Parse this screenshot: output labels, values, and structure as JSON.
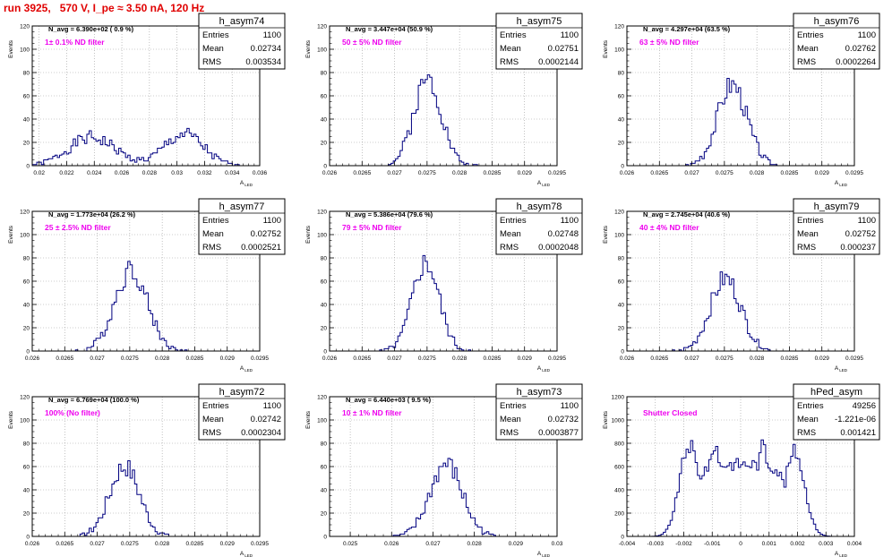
{
  "page_title": "run 3925,   570 V, I_pe ≈ 3.50 nA, 120 Hz",
  "colors": {
    "title": "#e00000",
    "hist": "#000080",
    "note": "#ee00ee",
    "grid": "#999999"
  },
  "common": {
    "y_label": "Events",
    "x_label": "A",
    "x_label_sub": "LED",
    "stat_labels": [
      "Entries",
      "Mean",
      "RMS"
    ]
  },
  "chart_data": [
    {
      "type": "bar",
      "name": "h_asym74",
      "navg_text": "N_avg = 6.390e+02 ( 0.9 %)",
      "note": "1± 0.1% ND filter",
      "stats": {
        "entries": "1100",
        "mean": "0.02734",
        "rms": "0.003534"
      },
      "xlim": [
        0.0195,
        0.036
      ],
      "xticks": [
        0.02,
        0.022,
        0.024,
        0.026,
        0.028,
        0.03,
        0.032,
        0.034,
        0.036
      ],
      "xtick_labels": [
        "0.02",
        "0.022",
        "0.024",
        "0.026",
        "0.028",
        "0.03",
        "0.032",
        "0.034",
        "0.036"
      ],
      "ylim": [
        0,
        120
      ],
      "yticks": [
        0,
        20,
        40,
        60,
        80,
        100,
        120
      ],
      "shape": "bimodal",
      "peaks": [
        {
          "mu": 0.0238,
          "sigma": 0.0017,
          "amp": 24
        },
        {
          "mu": 0.0305,
          "sigma": 0.0014,
          "amp": 27
        }
      ],
      "nbins": 100,
      "seed": 1
    },
    {
      "type": "bar",
      "name": "h_asym75",
      "navg_text": "N_avg = 3.447e+04 (50.9 %)",
      "note": "50 ± 5% ND filter",
      "stats": {
        "entries": "1100",
        "mean": "0.02751",
        "rms": "0.0002144"
      },
      "xlim": [
        0.026,
        0.0295
      ],
      "xticks": [
        0.026,
        0.0265,
        0.027,
        0.0275,
        0.028,
        0.0285,
        0.029,
        0.0295
      ],
      "xtick_labels": [
        "0.026",
        "0.0265",
        "0.027",
        "0.0275",
        "0.028",
        "0.0285",
        "0.029",
        "0.0295"
      ],
      "ylim": [
        0,
        120
      ],
      "yticks": [
        0,
        20,
        40,
        60,
        80,
        100,
        120
      ],
      "shape": "gauss",
      "peaks": [
        {
          "mu": 0.02751,
          "sigma": 0.000214,
          "amp": 75
        }
      ],
      "nbins": 100,
      "seed": 2
    },
    {
      "type": "bar",
      "name": "h_asym76",
      "navg_text": "N_avg = 4.297e+04 (63.5 %)",
      "note": "63 ± 5% ND filter",
      "stats": {
        "entries": "1100",
        "mean": "0.02762",
        "rms": "0.0002264"
      },
      "xlim": [
        0.026,
        0.0295
      ],
      "xticks": [
        0.026,
        0.0265,
        0.027,
        0.0275,
        0.028,
        0.0285,
        0.029,
        0.0295
      ],
      "xtick_labels": [
        "0.026",
        "0.0265",
        "0.027",
        "0.0275",
        "0.028",
        "0.0285",
        "0.029",
        "0.0295"
      ],
      "ylim": [
        0,
        120
      ],
      "yticks": [
        0,
        20,
        40,
        60,
        80,
        100,
        120
      ],
      "shape": "gauss",
      "peaks": [
        {
          "mu": 0.02762,
          "sigma": 0.000226,
          "amp": 70
        }
      ],
      "nbins": 100,
      "seed": 3
    },
    {
      "type": "bar",
      "name": "h_asym77",
      "navg_text": "N_avg = 1.773e+04 (26.2 %)",
      "note": "25 ± 2.5% ND filter",
      "stats": {
        "entries": "1100",
        "mean": "0.02752",
        "rms": "0.0002521"
      },
      "xlim": [
        0.026,
        0.0295
      ],
      "xticks": [
        0.026,
        0.0265,
        0.027,
        0.0275,
        0.028,
        0.0285,
        0.029,
        0.0295
      ],
      "xtick_labels": [
        "0.026",
        "0.0265",
        "0.027",
        "0.0275",
        "0.028",
        "0.0285",
        "0.029",
        "0.0295"
      ],
      "ylim": [
        0,
        120
      ],
      "yticks": [
        0,
        20,
        40,
        60,
        80,
        100,
        120
      ],
      "shape": "gauss",
      "peaks": [
        {
          "mu": 0.02752,
          "sigma": 0.000252,
          "amp": 70
        }
      ],
      "nbins": 100,
      "seed": 4
    },
    {
      "type": "bar",
      "name": "h_asym78",
      "navg_text": "N_avg = 5.386e+04 (79.6 %)",
      "note": "79 ± 5% ND filter",
      "stats": {
        "entries": "1100",
        "mean": "0.02748",
        "rms": "0.0002048"
      },
      "xlim": [
        0.026,
        0.0295
      ],
      "xticks": [
        0.026,
        0.0265,
        0.027,
        0.0275,
        0.028,
        0.0285,
        0.029,
        0.0295
      ],
      "xtick_labels": [
        "0.026",
        "0.0265",
        "0.027",
        "0.0275",
        "0.028",
        "0.0285",
        "0.029",
        "0.0295"
      ],
      "ylim": [
        0,
        120
      ],
      "yticks": [
        0,
        20,
        40,
        60,
        80,
        100,
        120
      ],
      "shape": "gauss",
      "peaks": [
        {
          "mu": 0.02748,
          "sigma": 0.000205,
          "amp": 76
        }
      ],
      "nbins": 100,
      "seed": 5
    },
    {
      "type": "bar",
      "name": "h_asym79",
      "navg_text": "N_avg = 2.745e+04 (40.6 %)",
      "note": "40 ± 4% ND filter",
      "stats": {
        "entries": "1100",
        "mean": "0.02752",
        "rms": "0.000237"
      },
      "xlim": [
        0.026,
        0.0295
      ],
      "xticks": [
        0.026,
        0.0265,
        0.027,
        0.0275,
        0.028,
        0.0285,
        0.029,
        0.0295
      ],
      "xtick_labels": [
        "0.026",
        "0.0265",
        "0.027",
        "0.0275",
        "0.028",
        "0.0285",
        "0.029",
        "0.0295"
      ],
      "ylim": [
        0,
        120
      ],
      "yticks": [
        0,
        20,
        40,
        60,
        80,
        100,
        120
      ],
      "shape": "gauss",
      "peaks": [
        {
          "mu": 0.02752,
          "sigma": 0.000237,
          "amp": 62
        }
      ],
      "nbins": 100,
      "seed": 6
    },
    {
      "type": "bar",
      "name": "h_asym72",
      "navg_text": "N_avg = 6.769e+04 (100.0 %)",
      "note": "100% (No filter)",
      "stats": {
        "entries": "1100",
        "mean": "0.02742",
        "rms": "0.0002304"
      },
      "xlim": [
        0.026,
        0.0295
      ],
      "xticks": [
        0.026,
        0.0265,
        0.027,
        0.0275,
        0.028,
        0.0285,
        0.029,
        0.0295
      ],
      "xtick_labels": [
        "0.026",
        "0.0265",
        "0.027",
        "0.0275",
        "0.028",
        "0.0285",
        "0.029",
        "0.0295"
      ],
      "ylim": [
        0,
        120
      ],
      "yticks": [
        0,
        20,
        40,
        60,
        80,
        100,
        120
      ],
      "shape": "gauss",
      "peaks": [
        {
          "mu": 0.02742,
          "sigma": 0.00023,
          "amp": 60
        }
      ],
      "nbins": 100,
      "seed": 7
    },
    {
      "type": "bar",
      "name": "h_asym73",
      "navg_text": "N_avg = 6.440e+03 ( 9.5 %)",
      "note": "10 ± 1% ND filter",
      "stats": {
        "entries": "1100",
        "mean": "0.02732",
        "rms": "0.0003877"
      },
      "xlim": [
        0.0245,
        0.03
      ],
      "xticks": [
        0.025,
        0.026,
        0.027,
        0.028,
        0.029,
        0.03
      ],
      "xtick_labels": [
        "0.025",
        "0.026",
        "0.027",
        "0.028",
        "0.029",
        "0.03"
      ],
      "ylim": [
        0,
        120
      ],
      "yticks": [
        0,
        20,
        40,
        60,
        80,
        100,
        120
      ],
      "shape": "gauss",
      "peaks": [
        {
          "mu": 0.02732,
          "sigma": 0.000388,
          "amp": 62
        }
      ],
      "nbins": 100,
      "seed": 8
    },
    {
      "type": "bar",
      "name": "hPed_asym",
      "navg_text": "",
      "note": "Shutter Closed",
      "stats": {
        "entries": "49256",
        "mean": "-1.221e-06",
        "rms": "0.001421"
      },
      "xlim": [
        -0.004,
        0.004
      ],
      "xticks": [
        -0.004,
        -0.003,
        -0.002,
        -0.001,
        0,
        0.001,
        0.002,
        0.003,
        0.004
      ],
      "xtick_labels": [
        "-0.004",
        "-0.003",
        "-0.002",
        "-0.001",
        "0",
        "0.001",
        "0.002",
        "0.003",
        "0.004"
      ],
      "ylim": [
        0,
        1200
      ],
      "yticks": [
        0,
        200,
        400,
        600,
        800,
        1000,
        1200
      ],
      "shape": "pedestal",
      "peaks": [
        {
          "mu": -0.0018,
          "sigma": 0.00035,
          "amp": 780
        },
        {
          "mu": -0.0009,
          "sigma": 0.0002,
          "amp": 800
        },
        {
          "mu": 0.0008,
          "sigma": 0.0002,
          "amp": 800
        },
        {
          "mu": 0.0019,
          "sigma": 0.00035,
          "amp": 730
        },
        {
          "mu": 0.0,
          "sigma": 0.0009,
          "amp": 620
        }
      ],
      "nbins": 100,
      "seed": 9
    }
  ]
}
